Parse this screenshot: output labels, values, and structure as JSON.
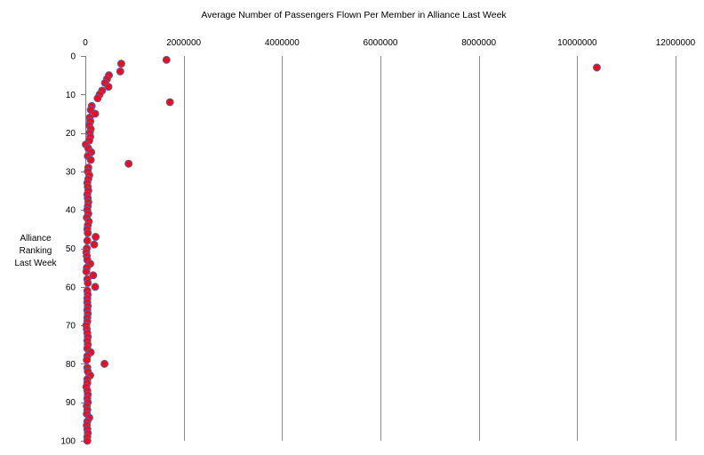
{
  "chart_data": {
    "type": "scatter",
    "title": "Average Number of Passengers Flown Per Member in Alliance Last Week",
    "xlabel": "",
    "ylabel": [
      "Alliance",
      "Ranking",
      "Last Week"
    ],
    "xlim": [
      0,
      12000000
    ],
    "ylim": [
      0,
      100
    ],
    "y_inverted": true,
    "x_axis_position": "top",
    "x_ticks": [
      0,
      2000000,
      4000000,
      6000000,
      8000000,
      10000000,
      12000000
    ],
    "x_tick_labels": [
      "0",
      "2000000",
      "4000000",
      "6000000",
      "8000000",
      "10000000",
      "12000000"
    ],
    "y_ticks": [
      0,
      10,
      20,
      30,
      40,
      50,
      60,
      70,
      80,
      90,
      100
    ],
    "y_tick_labels": [
      "0",
      "10",
      "20",
      "30",
      "40",
      "50",
      "60",
      "70",
      "80",
      "90",
      "100"
    ],
    "grid": "vertical",
    "legend": "none",
    "marker": {
      "fill": "#e8101e",
      "stroke": "#5b5ea8"
    },
    "points": [
      [
        1650000,
        1
      ],
      [
        730000,
        2
      ],
      [
        10400000,
        3
      ],
      [
        710000,
        4
      ],
      [
        480000,
        5
      ],
      [
        440000,
        6
      ],
      [
        400000,
        7
      ],
      [
        470000,
        8
      ],
      [
        340000,
        9
      ],
      [
        290000,
        10
      ],
      [
        250000,
        11
      ],
      [
        1720000,
        12
      ],
      [
        130000,
        13
      ],
      [
        110000,
        14
      ],
      [
        200000,
        15
      ],
      [
        90000,
        16
      ],
      [
        100000,
        17
      ],
      [
        80000,
        18
      ],
      [
        110000,
        19
      ],
      [
        90000,
        20
      ],
      [
        100000,
        21
      ],
      [
        80000,
        22
      ],
      [
        10000,
        23
      ],
      [
        60000,
        24
      ],
      [
        120000,
        25
      ],
      [
        50000,
        26
      ],
      [
        110000,
        27
      ],
      [
        880000,
        28
      ],
      [
        60000,
        29
      ],
      [
        50000,
        30
      ],
      [
        80000,
        31
      ],
      [
        60000,
        32
      ],
      [
        40000,
        33
      ],
      [
        50000,
        34
      ],
      [
        60000,
        35
      ],
      [
        40000,
        36
      ],
      [
        50000,
        37
      ],
      [
        60000,
        38
      ],
      [
        50000,
        39
      ],
      [
        40000,
        40
      ],
      [
        60000,
        41
      ],
      [
        30000,
        42
      ],
      [
        70000,
        43
      ],
      [
        50000,
        44
      ],
      [
        40000,
        45
      ],
      [
        50000,
        46
      ],
      [
        210000,
        47
      ],
      [
        40000,
        48
      ],
      [
        180000,
        49
      ],
      [
        30000,
        50
      ],
      [
        20000,
        51
      ],
      [
        30000,
        52
      ],
      [
        40000,
        53
      ],
      [
        100000,
        54
      ],
      [
        30000,
        55
      ],
      [
        20000,
        56
      ],
      [
        160000,
        57
      ],
      [
        40000,
        58
      ],
      [
        50000,
        59
      ],
      [
        200000,
        60
      ],
      [
        40000,
        61
      ],
      [
        50000,
        62
      ],
      [
        40000,
        63
      ],
      [
        40000,
        64
      ],
      [
        50000,
        65
      ],
      [
        40000,
        66
      ],
      [
        50000,
        67
      ],
      [
        40000,
        68
      ],
      [
        40000,
        69
      ],
      [
        20000,
        70
      ],
      [
        30000,
        71
      ],
      [
        40000,
        72
      ],
      [
        50000,
        73
      ],
      [
        40000,
        74
      ],
      [
        50000,
        75
      ],
      [
        40000,
        76
      ],
      [
        110000,
        77
      ],
      [
        40000,
        78
      ],
      [
        30000,
        79
      ],
      [
        390000,
        80
      ],
      [
        40000,
        81
      ],
      [
        50000,
        82
      ],
      [
        100000,
        83
      ],
      [
        40000,
        84
      ],
      [
        40000,
        85
      ],
      [
        20000,
        86
      ],
      [
        40000,
        87
      ],
      [
        50000,
        88
      ],
      [
        40000,
        89
      ],
      [
        50000,
        90
      ],
      [
        30000,
        91
      ],
      [
        40000,
        92
      ],
      [
        30000,
        93
      ],
      [
        80000,
        94
      ],
      [
        40000,
        95
      ],
      [
        30000,
        96
      ],
      [
        40000,
        97
      ],
      [
        50000,
        98
      ],
      [
        40000,
        99
      ],
      [
        40000,
        100
      ]
    ]
  }
}
